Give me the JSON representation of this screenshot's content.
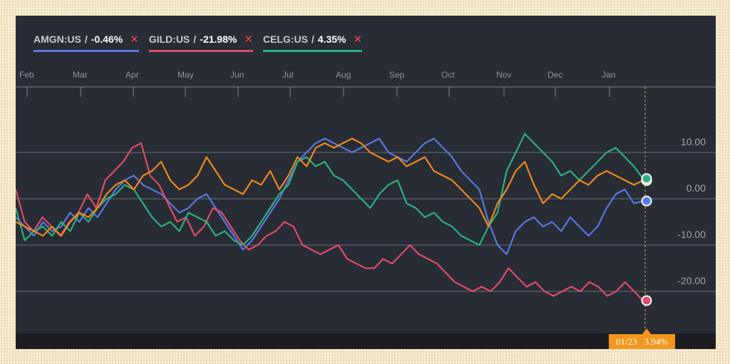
{
  "legend": [
    {
      "ticker": "AMGN:US",
      "change": "-0.46%",
      "color": "#5b78e0"
    },
    {
      "ticker": "GILD:US",
      "change": "-21.98%",
      "color": "#e04d67"
    },
    {
      "ticker": "CELG:US",
      "change": "4.35%",
      "color": "#2fb07e"
    }
  ],
  "tooltip": {
    "date": "01/23",
    "value": "3.94%"
  },
  "chart_data": {
    "type": "line",
    "title": "",
    "xlabel": "",
    "ylabel": "",
    "x_ticks": [
      "Feb",
      "Mar",
      "Apr",
      "May",
      "Jun",
      "Jul",
      "Aug",
      "Sep",
      "Oct",
      "Nov",
      "Dec",
      "Jan"
    ],
    "y_ticks": [
      "10.00",
      "0.00",
      "-10.00",
      "-20.00"
    ],
    "ylim": [
      -30,
      22
    ],
    "grid": true,
    "series": [
      {
        "name": "AMGN:US",
        "color": "#5b78e0",
        "values": [
          -4,
          -6,
          -8,
          -5,
          -7,
          -6,
          -3,
          -5,
          -2,
          -4,
          -1,
          2,
          4,
          5,
          3,
          2,
          1,
          -1,
          -3,
          -2,
          0,
          1,
          -2,
          -5,
          -8,
          -11,
          -9,
          -6,
          -3,
          0,
          4,
          8,
          10,
          12,
          13,
          12,
          11,
          10,
          11,
          12,
          13,
          10,
          9,
          8,
          10,
          12,
          13,
          11,
          9,
          6,
          4,
          2,
          -5,
          -10,
          -12,
          -7,
          -5,
          -4,
          -6,
          -5,
          -7,
          -4,
          -6,
          -8,
          -6,
          -2,
          1,
          2,
          -1,
          -0.5
        ]
      },
      {
        "name": "GILD:US",
        "color": "#e04d67",
        "values": [
          2,
          -5,
          -7,
          -4,
          -6,
          -8,
          -5,
          -3,
          1,
          -2,
          4,
          6,
          8,
          11,
          12,
          5,
          3,
          -1,
          -5,
          -4,
          -8,
          -6,
          -2,
          -3,
          -6,
          -9,
          -11,
          -10,
          -8,
          -7,
          -5,
          -6,
          -10,
          -11,
          -12,
          -11,
          -10,
          -13,
          -14,
          -15,
          -15,
          -13,
          -14,
          -12,
          -10,
          -12,
          -13,
          -14,
          -16,
          -18,
          -19,
          -20,
          -19,
          -20,
          -18,
          -15,
          -17,
          -19,
          -18,
          -20,
          -21,
          -20,
          -19,
          -20,
          -18,
          -19,
          -21,
          -20,
          -18,
          -20,
          -22
        ]
      },
      {
        "name": "CELG:US",
        "color": "#2fb07e",
        "values": [
          -2,
          -9,
          -7,
          -6,
          -8,
          -5,
          -7,
          -3,
          -5,
          -2,
          0,
          1,
          3,
          2,
          -1,
          -4,
          -6,
          -5,
          -7,
          -3,
          -4,
          -5,
          -8,
          -7,
          -9,
          -10,
          -8,
          -5,
          -2,
          1,
          3,
          8,
          9,
          7,
          8,
          5,
          4,
          2,
          0,
          -2,
          1,
          3,
          4,
          -1,
          -2,
          -4,
          -3,
          -5,
          -6,
          -8,
          -9,
          -10,
          -6,
          -3,
          6,
          10,
          14,
          12,
          10,
          8,
          5,
          6,
          4,
          6,
          8,
          10,
          11,
          9,
          7,
          4.35
        ]
      },
      {
        "name": "",
        "color": "#ee8a1e",
        "values": [
          -5,
          -6,
          -7,
          -8,
          -6,
          -8,
          -5,
          -3,
          -4,
          -2,
          1,
          3,
          4,
          2,
          5,
          6,
          8,
          4,
          2,
          3,
          5,
          9,
          6,
          3,
          2,
          1,
          4,
          3,
          6,
          2,
          5,
          9,
          7,
          11,
          12,
          11,
          12,
          13,
          12,
          10,
          9,
          8,
          9,
          7,
          8,
          9,
          6,
          5,
          4,
          2,
          0,
          -2,
          -6,
          -1,
          2,
          6,
          8,
          3,
          -1,
          1,
          0,
          2,
          4,
          3,
          5,
          6,
          5,
          4,
          3,
          3.94
        ]
      }
    ],
    "focus": {
      "date": "01/23",
      "value": 3.94
    }
  }
}
